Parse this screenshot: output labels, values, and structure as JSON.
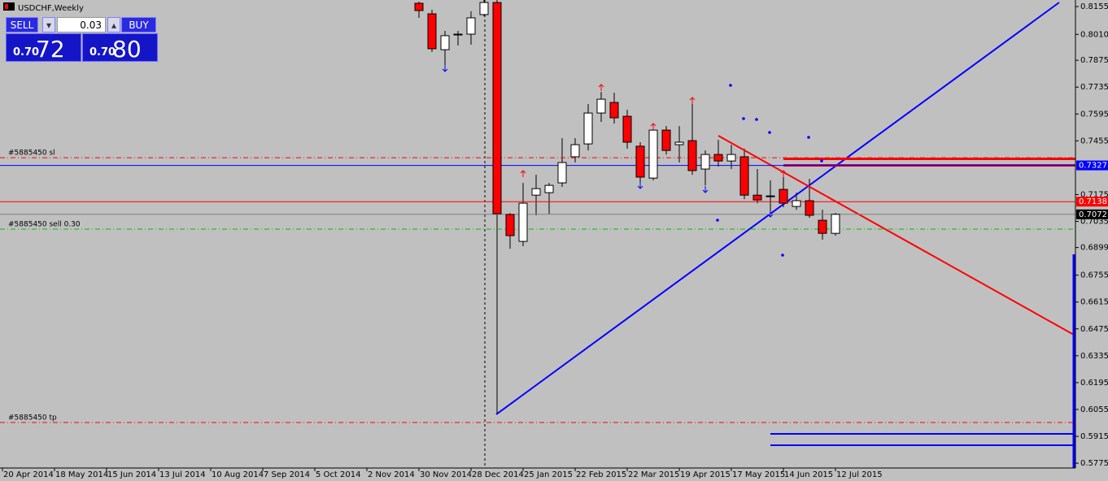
{
  "window": {
    "title": "USDCHF,Weekly"
  },
  "trade_panel": {
    "sell": "SELL",
    "buy": "BUY",
    "lot": "0.03",
    "bid_head": "0.70",
    "bid_tail": "72",
    "ask_head": "0.70",
    "ask_tail": "80"
  },
  "chart_data": {
    "type": "candlestick",
    "categories": [
      "20 Apr 2014",
      null,
      null,
      null,
      "18 May 2014",
      null,
      null,
      null,
      "15 Jun 2014",
      null,
      null,
      null,
      "13 Jul 2014",
      null,
      null,
      null,
      "10 Aug 2014",
      null,
      null,
      null,
      "7 Sep 2014",
      null,
      null,
      null,
      "5 Oct 2014",
      null,
      null,
      null,
      "2 Nov 2014",
      null,
      null,
      null,
      "30 Nov 2014",
      null,
      null,
      null,
      "28 Dec 2014",
      null,
      null,
      null,
      "25 Jan 2015",
      null,
      null,
      null,
      "22 Feb 2015",
      null,
      null,
      null,
      "22 Mar 2015",
      null,
      null,
      null,
      "19 Apr 2015",
      null,
      null,
      null,
      "17 May 2015",
      null,
      null,
      null,
      "14 Jun 2015",
      null,
      null,
      null,
      "12 Jul 2015"
    ],
    "open": [
      null,
      null,
      null,
      null,
      null,
      null,
      null,
      null,
      null,
      null,
      null,
      null,
      null,
      null,
      null,
      null,
      null,
      null,
      null,
      null,
      null,
      null,
      null,
      null,
      null,
      null,
      null,
      null,
      null,
      null,
      null,
      null,
      0.8172,
      0.8117,
      0.793,
      0.8007,
      0.8011,
      0.8113,
      0.8176,
      0.7071,
      0.6931,
      0.7172,
      0.7185,
      0.7236,
      0.7372,
      0.7439,
      0.76,
      0.7655,
      0.7583,
      0.7427,
      0.7261,
      0.7511,
      0.7435,
      0.7456,
      0.7308,
      0.7384,
      0.735,
      0.7372,
      0.7172,
      0.7168,
      0.7202,
      0.7113,
      0.7143,
      0.7041,
      0.6973
    ],
    "high": [
      null,
      null,
      null,
      null,
      null,
      null,
      null,
      null,
      null,
      null,
      null,
      null,
      null,
      null,
      null,
      null,
      null,
      null,
      null,
      null,
      null,
      null,
      null,
      null,
      null,
      null,
      null,
      null,
      null,
      null,
      null,
      null,
      0.818,
      0.8138,
      0.8028,
      0.8028,
      0.813,
      0.819,
      0.819,
      0.7079,
      0.7236,
      0.7278,
      0.7236,
      0.7469,
      0.7469,
      0.7647,
      0.771,
      0.7706,
      0.7617,
      0.7448,
      0.7545,
      0.7532,
      0.7532,
      0.766,
      0.7405,
      0.746,
      0.7435,
      0.7414,
      0.7308,
      0.7249,
      0.7291,
      0.7185,
      0.7257,
      0.7096,
      0.7079
    ],
    "low": [
      null,
      null,
      null,
      null,
      null,
      null,
      null,
      null,
      null,
      null,
      null,
      null,
      null,
      null,
      null,
      null,
      null,
      null,
      null,
      null,
      null,
      null,
      null,
      null,
      null,
      null,
      null,
      null,
      null,
      null,
      null,
      null,
      0.8096,
      0.7918,
      0.7829,
      0.7952,
      0.7956,
      0.8104,
      0.6029,
      0.6893,
      0.6906,
      0.7067,
      0.7075,
      0.7215,
      0.7342,
      0.7405,
      0.7554,
      0.7545,
      0.7414,
      0.7236,
      0.7249,
      0.7384,
      0.7342,
      0.7278,
      0.7223,
      0.7321,
      0.7308,
      0.7151,
      0.713,
      0.7079,
      0.7109,
      0.7096,
      0.7054,
      0.694,
      0.6961
    ],
    "close": [
      null,
      null,
      null,
      null,
      null,
      null,
      null,
      null,
      null,
      null,
      null,
      null,
      null,
      null,
      null,
      null,
      null,
      null,
      null,
      null,
      null,
      null,
      null,
      null,
      null,
      null,
      null,
      null,
      null,
      null,
      null,
      null,
      0.8134,
      0.7935,
      0.8003,
      0.8011,
      0.8096,
      0.8176,
      0.7075,
      0.6961,
      0.713,
      0.7206,
      0.7223,
      0.7342,
      0.7435,
      0.76,
      0.7672,
      0.7575,
      0.7448,
      0.7266,
      0.7511,
      0.7405,
      0.7448,
      0.73,
      0.7384,
      0.735,
      0.7384,
      0.7172,
      0.7147,
      0.7168,
      0.713,
      0.7143,
      0.7067,
      0.6973,
      0.7072
    ],
    "up_color": "#ffffff",
    "down_color": "#ff0000",
    "ylim": [
      0.575,
      0.8189
    ],
    "yticks": [
      0.8155,
      {
        "value": 0.801,
        "label": "0.8010"
      },
      0.7875,
      0.7735,
      0.7595,
      0.7455,
      0.7175,
      0.7035,
      0.6899,
      0.6755,
      0.6615,
      0.6475,
      0.6335,
      0.6195,
      0.6055,
      0.5915,
      0.5775
    ],
    "price_markers": [
      {
        "value": 0.7327,
        "color": "#0000ff"
      },
      {
        "value": 0.7138,
        "color": "#ff0000"
      },
      {
        "value": 0.7072,
        "color": "#000000"
      }
    ],
    "order_lines": [
      {
        "label": "#5885450 sl",
        "value": 0.7367,
        "color": "#ff0000"
      },
      {
        "label": "#5885450 sell 0.30",
        "value": 0.6995,
        "color": "#00c000"
      },
      {
        "label": "#5885450 tp",
        "value": 0.5987,
        "color": "#ff0000"
      }
    ]
  }
}
